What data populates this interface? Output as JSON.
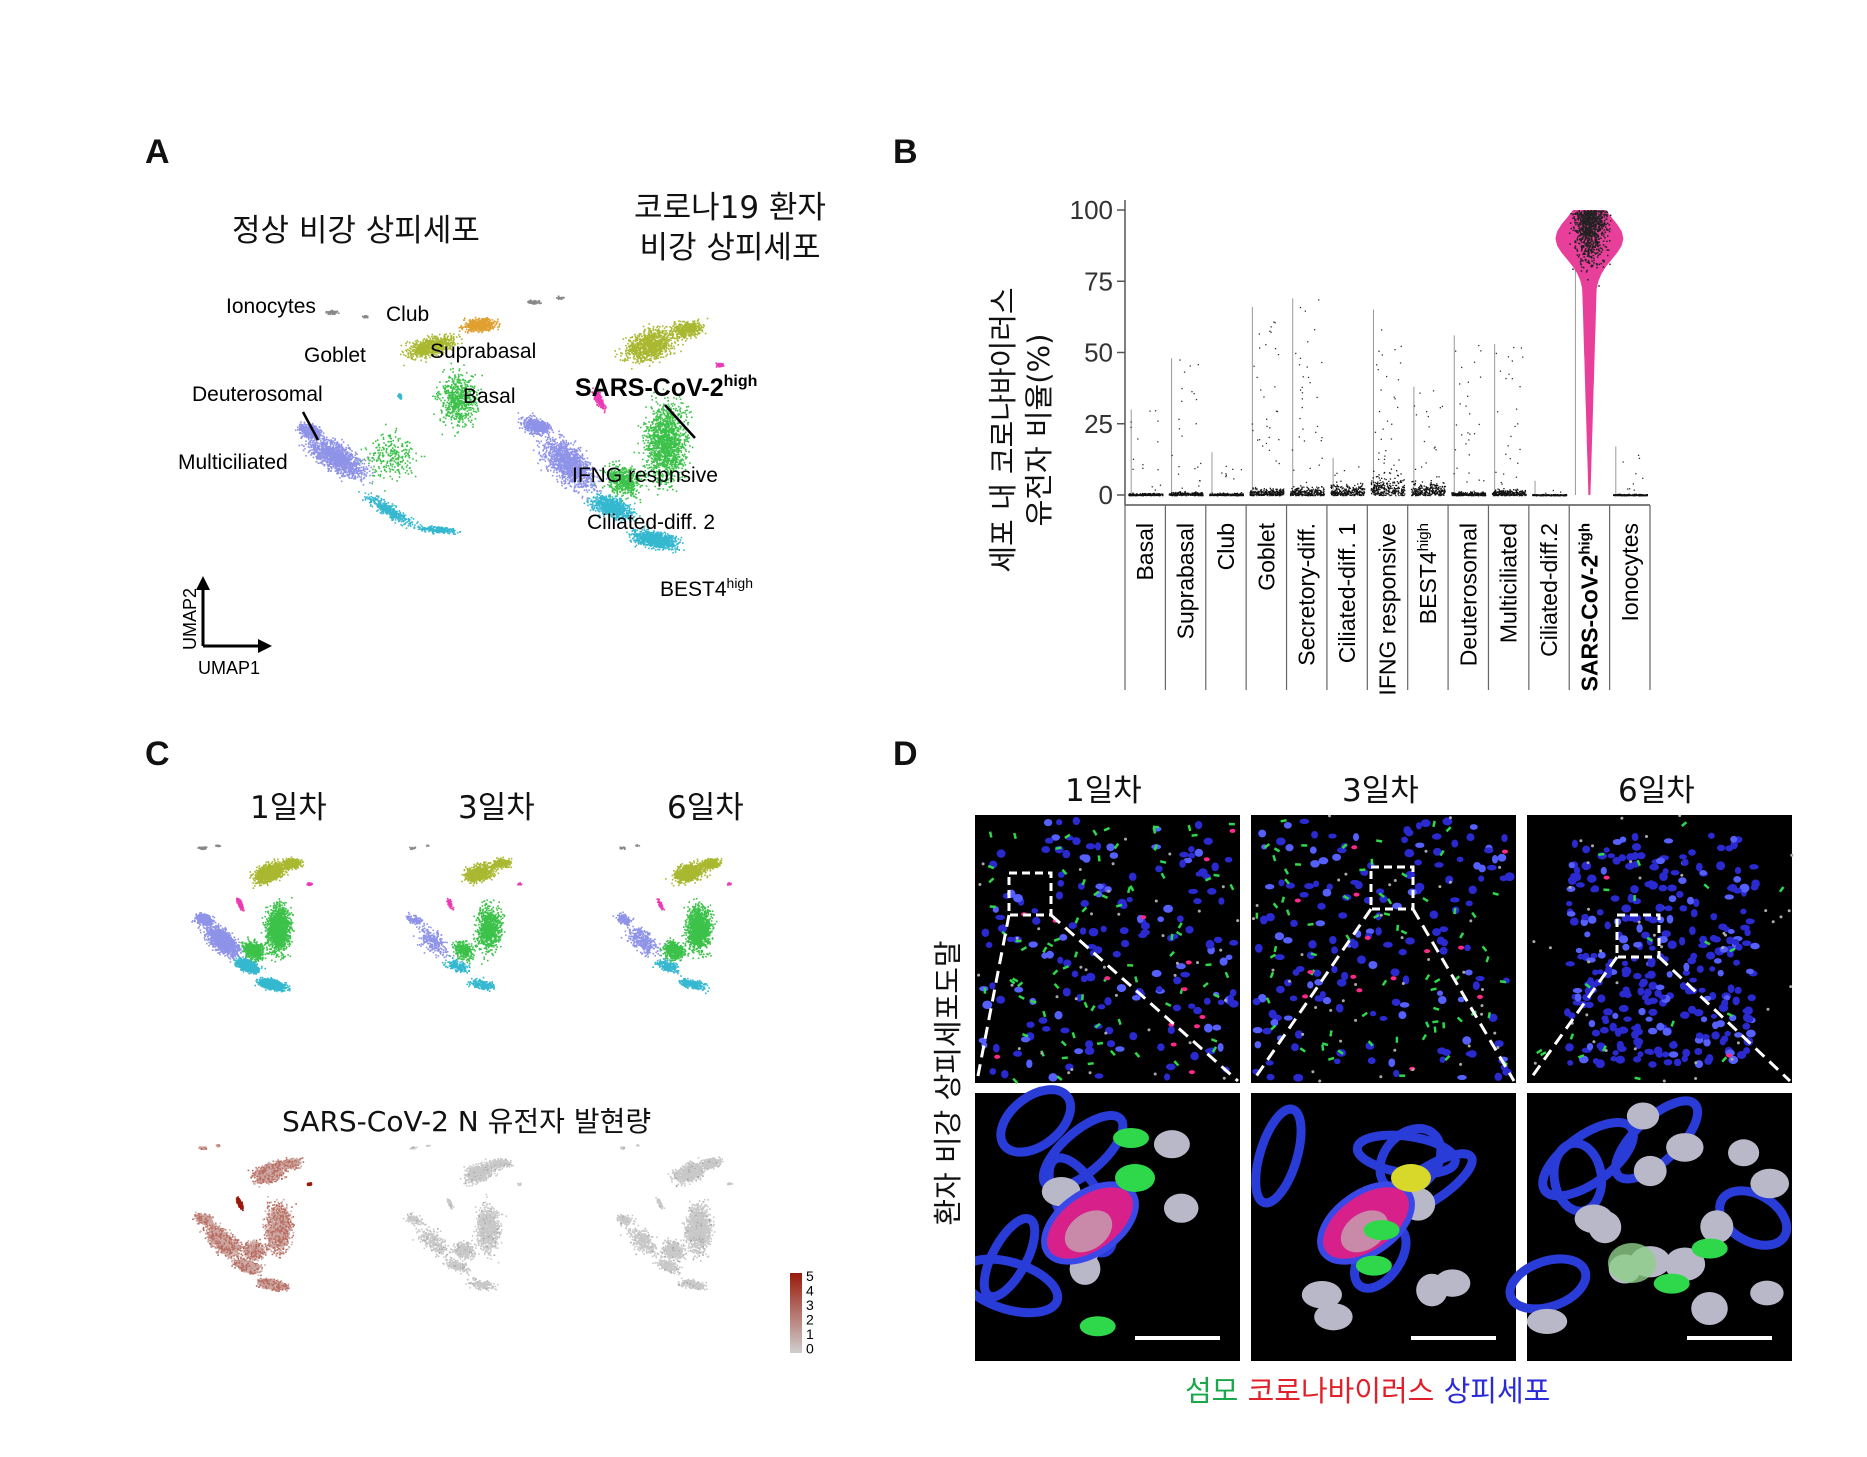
{
  "panel_labels": {
    "a": "A",
    "b": "B",
    "c": "C",
    "d": "D"
  },
  "panel_a": {
    "title_normal": "정상 비강 상피세포",
    "title_covid_line1": "코로나19 환자",
    "title_covid_line2": "비강 상피세포",
    "normal_labels": {
      "ionocytes": "Ionocytes",
      "club": "Club",
      "goblet": "Goblet",
      "suprabasal": "Suprabasal",
      "deuterosomal": "Deuterosomal",
      "basal": "Basal",
      "multiciliated": "Multiciliated"
    },
    "covid_labels": {
      "sars_base": "SARS-CoV-2",
      "sars_sup": "high",
      "ifng": "IFNG respnsive",
      "ciliated": "Ciliated-diff. 2",
      "best4_base": "BEST4",
      "best4_sup": "high"
    },
    "axes": {
      "umap1": "UMAP1",
      "umap2": "UMAP2"
    },
    "cluster_colors": {
      "blue": "#8f93e8",
      "teal": "#35b8d0",
      "green": "#3cc24a",
      "olive": "#a9b830",
      "orange": "#e0a030",
      "magenta": "#ea3ab4",
      "grey": "#888888"
    }
  },
  "panel_b": {
    "ylabel_line1": "세포 내 코로나바이러스",
    "ylabel_line2": "유전자 비율(%)",
    "violin_color": "#e8409a"
  },
  "chart_data": {
    "type": "scatter",
    "title": "",
    "xlabel": "",
    "ylabel": "세포 내 코로나바이러스 유전자 비율(%)",
    "ylim": [
      0,
      100
    ],
    "yticks": [
      0,
      25,
      50,
      75,
      100
    ],
    "grid": false,
    "categories": [
      "Basal",
      "Suprabasal",
      "Club",
      "Goblet",
      "Secretory-diff.",
      "Ciliated-diff. 1",
      "IFNG responsive",
      "BEST4high",
      "Deuterosomal",
      "Multiciliated",
      "Ciliated-diff.2",
      "SARS-CoV-2high",
      "Ionocytes"
    ],
    "category_display": [
      {
        "base": "Basal",
        "sup": ""
      },
      {
        "base": "Suprabasal",
        "sup": ""
      },
      {
        "base": "Club",
        "sup": ""
      },
      {
        "base": "Goblet",
        "sup": ""
      },
      {
        "base": "Secretory-diff.",
        "sup": ""
      },
      {
        "base": "Ciliated-diff. 1",
        "sup": ""
      },
      {
        "base": "IFNG responsive",
        "sup": ""
      },
      {
        "base": "BEST4",
        "sup": "high"
      },
      {
        "base": "Deuterosomal",
        "sup": ""
      },
      {
        "base": "Multiciliated",
        "sup": ""
      },
      {
        "base": "Ciliated-diff.2",
        "sup": ""
      },
      {
        "base": "SARS-CoV-2",
        "sup": "high"
      },
      {
        "base": "Ionocytes",
        "sup": ""
      }
    ],
    "max_values": [
      30,
      48,
      15,
      66,
      69,
      13,
      65,
      38,
      56,
      53,
      5,
      100,
      17
    ],
    "spread": [
      2,
      3,
      2,
      6,
      8,
      10,
      18,
      12,
      3,
      5,
      1,
      95,
      1
    ]
  },
  "panel_c": {
    "days": [
      "1일차",
      "3일차",
      "6일차"
    ],
    "expression_title": "SARS-CoV-2 N 유전자 발현량",
    "colorbar_ticks": [
      "5",
      "4",
      "3",
      "2",
      "1",
      "0"
    ],
    "colorbar_high": "#9a1a0a",
    "colorbar_low": "#cfcfcf"
  },
  "panel_d": {
    "days": [
      "1일차",
      "3일차",
      "6일차"
    ],
    "side_label": "환자 비강 상피세포도말",
    "legend": {
      "cilia": "섬모",
      "virus": "코로나바이러스",
      "epithelial": "상피세포"
    },
    "legend_colors": {
      "cilia": "#1aa84a",
      "virus": "#e0202a",
      "epithelial": "#2a2ad8"
    }
  }
}
